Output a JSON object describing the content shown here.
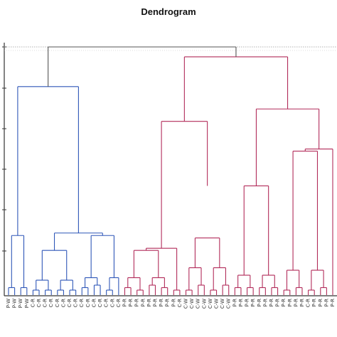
{
  "chart_data": {
    "type": "dendrogram",
    "title": "Dendrogram",
    "xlabel": "",
    "ylabel": "",
    "colors": {
      "cluster_1": "#2f57b8",
      "cluster_2": "#b22c5a",
      "root": "#555555",
      "cut_line": "#9a9a9a"
    },
    "cut_line_height": 0.96,
    "root_height": 1.0,
    "clusters": [
      {
        "id": "cluster_1",
        "merge_height": 0.84,
        "merges": [
          {
            "id": "b1",
            "height": 0.24,
            "children": [
              "P-W",
              "b2"
            ]
          },
          {
            "id": "b2",
            "height": 0.03,
            "children": [
              "P-W",
              "P-W"
            ]
          },
          {
            "id": "b3",
            "height": 0.25,
            "children": [
              "b4",
              "b7"
            ]
          },
          {
            "id": "b4",
            "height": 0.18,
            "children": [
              "b5",
              "b6"
            ]
          },
          {
            "id": "b5",
            "height": 0.07,
            "children": [
              "C-R",
              "C-R"
            ]
          },
          {
            "id": "b6",
            "height": 0.06,
            "children": [
              "C-R",
              "C-R"
            ]
          },
          {
            "id": "b7",
            "height": 0.24,
            "children": [
              "b8",
              "b9"
            ]
          },
          {
            "id": "b8",
            "height": 0.07,
            "children": [
              "C-R",
              "C-R"
            ]
          },
          {
            "id": "b9",
            "height": 0.1,
            "children": [
              "C-R",
              "C-R"
            ]
          },
          {
            "id": "b10",
            "height": 0.84,
            "children": [
              "b1",
              "b3"
            ]
          }
        ]
      },
      {
        "id": "cluster_2",
        "merge_height": 0.96,
        "merges": [
          {
            "id": "r1",
            "height": 0.7,
            "children": [
              "r2",
              "r5"
            ]
          },
          {
            "id": "r2",
            "height": 0.18,
            "children": [
              "r3",
              "r4"
            ]
          },
          {
            "id": "r3",
            "height": 0.1,
            "children": [
              "P-R",
              "P-R"
            ]
          },
          {
            "id": "r4",
            "height": 0.07,
            "children": [
              "P-R",
              "P-R"
            ]
          },
          {
            "id": "r5",
            "height": 0.44,
            "children": [
              "r6",
              "r7"
            ]
          },
          {
            "id": "r6",
            "height": 0.23,
            "children": [
              "C-W",
              "C-W"
            ]
          },
          {
            "id": "r7",
            "height": 0.11,
            "children": [
              "C-W",
              "C-W"
            ]
          },
          {
            "id": "r8",
            "height": 0.75,
            "children": [
              "r9",
              "r12"
            ]
          },
          {
            "id": "r9",
            "height": 0.44,
            "children": [
              "r10",
              "r11"
            ]
          },
          {
            "id": "r10",
            "height": 0.15,
            "children": [
              "P-R",
              "P-R"
            ]
          },
          {
            "id": "r11",
            "height": 0.41,
            "children": [
              "P-R",
              "P-R"
            ]
          },
          {
            "id": "r12",
            "height": 0.58,
            "children": [
              "C-R",
              "P-R"
            ]
          },
          {
            "id": "r13",
            "height": 0.96,
            "children": [
              "r1",
              "r8"
            ]
          }
        ]
      }
    ],
    "leaf_labels": [
      "P-W",
      "P-W",
      "P-W",
      "P-W",
      "C-R",
      "C-R",
      "C-R",
      "C-R",
      "C-R",
      "C-R",
      "C-R",
      "C-R",
      "C-R",
      "C-R",
      "C-R",
      "C-R",
      "C-R",
      "C-R",
      "C-R",
      "P-R",
      "P-R",
      "P-R",
      "P-R",
      "P-R",
      "P-R",
      "P-R",
      "P-R",
      "P-R",
      "C-R",
      "C-W",
      "C-W",
      "C-W",
      "C-W",
      "C-W",
      "C-W",
      "C-W",
      "C-W",
      "P-R",
      "P-R",
      "P-R",
      "P-R",
      "P-R",
      "P-R",
      "P-R",
      "P-R",
      "P-R",
      "P-R",
      "P-R",
      "P-R",
      "C-R",
      "P-R",
      "P-R",
      "P-R",
      "P-R"
    ]
  }
}
